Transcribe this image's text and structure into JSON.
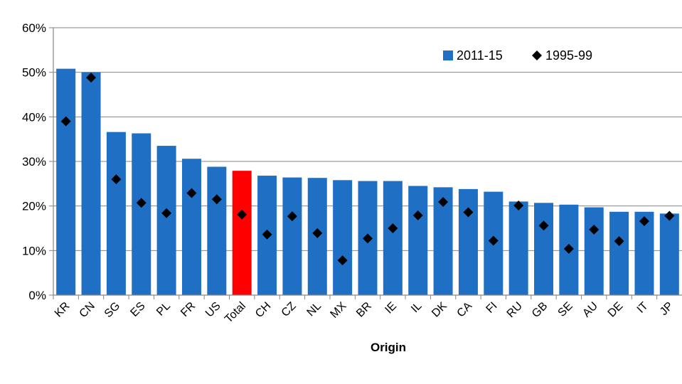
{
  "chart_data": {
    "type": "bar",
    "title": "",
    "xlabel": "Origin",
    "ylabel": "",
    "ylim": [
      0,
      0.6
    ],
    "yticks": [
      "0%",
      "10%",
      "20%",
      "30%",
      "40%",
      "50%",
      "60%"
    ],
    "grid": true,
    "legend_position": "top-right",
    "categories": [
      "KR",
      "CN",
      "SG",
      "ES",
      "PL",
      "FR",
      "US",
      "Total",
      "CH",
      "CZ",
      "NL",
      "MX",
      "BR",
      "IE",
      "IL",
      "DK",
      "CA",
      "FI",
      "RU",
      "GB",
      "SE",
      "AU",
      "DE",
      "IT",
      "JP"
    ],
    "series": [
      {
        "name": "2011-15",
        "kind": "bar",
        "color": "#1f6fc5",
        "highlight": {
          "category": "Total",
          "color": "#ff0000"
        },
        "values": [
          0.508,
          0.5,
          0.366,
          0.363,
          0.335,
          0.306,
          0.288,
          0.279,
          0.268,
          0.264,
          0.263,
          0.258,
          0.256,
          0.256,
          0.245,
          0.242,
          0.238,
          0.232,
          0.21,
          0.207,
          0.203,
          0.197,
          0.187,
          0.187,
          0.183
        ]
      },
      {
        "name": "1995-99",
        "kind": "marker",
        "marker": "diamond",
        "color": "#000000",
        "values": [
          0.39,
          0.488,
          0.26,
          0.207,
          0.184,
          0.229,
          0.215,
          0.181,
          0.136,
          0.177,
          0.139,
          0.078,
          0.127,
          0.15,
          0.179,
          0.209,
          0.186,
          0.122,
          0.201,
          0.156,
          0.104,
          0.147,
          0.121,
          0.166,
          0.178
        ]
      }
    ]
  }
}
